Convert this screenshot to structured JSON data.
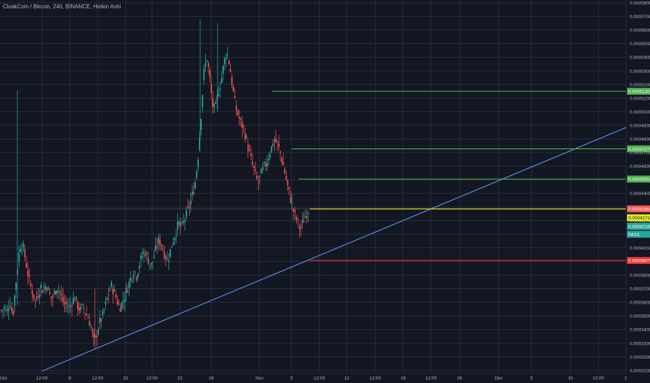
{
  "header": {
    "title": "CloakCoin / Bitcoin, 240, BINANCE, Heikin Ashi"
  },
  "colors": {
    "background": "#131722",
    "grid": "#2a2e39",
    "up": "#26a69a",
    "down": "#ef5350",
    "axis_text": "#b2b5be",
    "trendline": "#5b8fe8",
    "support": "#e8e82a",
    "resistance": "#4caf50",
    "stop": "#e53935"
  },
  "chart_data": {
    "type": "candlestick",
    "y_ticks": [
      "0.0005800",
      "0.0005700",
      "0.0005600",
      "0.0005500",
      "0.0005400",
      "0.0005300",
      "0.0005200",
      "0.0005100",
      "0.0005000",
      "0.0004900",
      "0.0004800",
      "0.0004700",
      "0.0004600",
      "0.0004500",
      "0.0004400",
      "0.0004300",
      "0.0004200",
      "0.0004100",
      "0.0004000",
      "0.0003900",
      "0.0003800",
      "0.0003700",
      "0.0003600",
      "0.0003500",
      "0.0003400",
      "0.0003300",
      "0.0003200",
      "0.0003100"
    ],
    "y_range": [
      0.00031,
      0.00058
    ],
    "x_ticks": [
      "Oct",
      "12:00",
      "8",
      "12:00",
      "15",
      "12:00",
      "22",
      "26",
      "Nov",
      "5",
      "12:00",
      "12",
      "12:00",
      "19",
      "12:00",
      "26",
      "Dec",
      "5",
      "10",
      "12:00",
      "1"
    ],
    "horizontal_levels": [
      {
        "price": 0.000515,
        "label": "0.0005145",
        "color": "#4caf50"
      },
      {
        "price": 0.0004727,
        "label": "0.0004727",
        "color": "#4caf50"
      },
      {
        "price": 0.0004505,
        "label": "0.0004505",
        "color": "#4caf50"
      },
      {
        "price": 0.0004286,
        "label": "0.0004286",
        "color": "#e8e82a"
      },
      {
        "price": 0.0003907,
        "label": "0.0003907",
        "color": "#e53935"
      }
    ],
    "price_tags": [
      {
        "price": 0.0004286,
        "label": "0.0004286",
        "color": "#ef5350"
      },
      {
        "price": 0.0004271,
        "label": "0.0004271",
        "color": "#e8e82a"
      },
      {
        "price": 0.0004218,
        "label": "0.0004218",
        "color": "#26a69a"
      },
      {
        "price": 0.00041,
        "label": "04:01",
        "color": "#26a69a"
      }
    ],
    "trendline": {
      "from": {
        "x": "Oct 3",
        "price": 0.000309
      },
      "to": {
        "x": "Dec 12",
        "price": 0.000488
      }
    },
    "price_path": [
      [
        0.000354,
        0
      ],
      [
        0.000356,
        1
      ],
      [
        0.000352,
        2
      ],
      [
        0.000362,
        1
      ],
      [
        0.00035,
        2
      ],
      [
        0.000371,
        1
      ],
      [
        0.000392,
        1
      ],
      [
        0.000405,
        1
      ],
      [
        0.000398,
        2
      ],
      [
        0.000386,
        2
      ],
      [
        0.000374,
        2
      ],
      [
        0.000368,
        2
      ],
      [
        0.000362,
        2
      ],
      [
        0.000366,
        1
      ],
      [
        0.000372,
        1
      ],
      [
        0.000368,
        2
      ],
      [
        0.000374,
        1
      ],
      [
        0.000366,
        2
      ],
      [
        0.000362,
        2
      ],
      [
        0.000368,
        1
      ],
      [
        0.000372,
        1
      ],
      [
        0.000366,
        2
      ],
      [
        0.00036,
        2
      ],
      [
        0.000358,
        2
      ],
      [
        0.000356,
        1
      ],
      [
        0.00036,
        1
      ],
      [
        0.000364,
        1
      ],
      [
        0.000358,
        2
      ],
      [
        0.000354,
        2
      ],
      [
        0.000356,
        1
      ],
      [
        0.000352,
        2
      ],
      [
        0.000348,
        2
      ],
      [
        0.00034,
        2
      ],
      [
        0.00033,
        2
      ],
      [
        0.000338,
        1
      ],
      [
        0.000346,
        1
      ],
      [
        0.00035,
        1
      ],
      [
        0.000358,
        1
      ],
      [
        0.000366,
        1
      ],
      [
        0.000372,
        1
      ],
      [
        0.000368,
        2
      ],
      [
        0.000362,
        2
      ],
      [
        0.000356,
        2
      ],
      [
        0.00036,
        1
      ],
      [
        0.000366,
        1
      ],
      [
        0.000372,
        1
      ],
      [
        0.000378,
        1
      ],
      [
        0.000384,
        1
      ],
      [
        0.00038,
        2
      ],
      [
        0.000388,
        1
      ],
      [
        0.000394,
        1
      ],
      [
        0.000398,
        1
      ],
      [
        0.000392,
        2
      ],
      [
        0.000386,
        2
      ],
      [
        0.000392,
        1
      ],
      [
        0.0004,
        1
      ],
      [
        0.000406,
        1
      ],
      [
        0.000402,
        2
      ],
      [
        0.000396,
        2
      ],
      [
        0.00039,
        2
      ],
      [
        0.000398,
        1
      ],
      [
        0.000406,
        1
      ],
      [
        0.000412,
        1
      ],
      [
        0.000418,
        1
      ],
      [
        0.000414,
        2
      ],
      [
        0.00042,
        1
      ],
      [
        0.000426,
        1
      ],
      [
        0.000432,
        1
      ],
      [
        0.00044,
        1
      ],
      [
        0.00045,
        1
      ],
      [
        0.00047,
        1
      ],
      [
        0.0005,
        1
      ],
      [
        0.00053,
        1
      ],
      [
        0.00054,
        1
      ],
      [
        0.000525,
        2
      ],
      [
        0.000505,
        2
      ],
      [
        0.0005,
        1
      ],
      [
        0.000515,
        1
      ],
      [
        0.000522,
        1
      ],
      [
        0.000535,
        1
      ],
      [
        0.000545,
        1
      ],
      [
        0.000535,
        2
      ],
      [
        0.00052,
        2
      ],
      [
        0.000505,
        2
      ],
      [
        0.000498,
        2
      ],
      [
        0.000492,
        2
      ],
      [
        0.000488,
        2
      ],
      [
        0.00048,
        2
      ],
      [
        0.00047,
        2
      ],
      [
        0.000462,
        2
      ],
      [
        0.000455,
        2
      ],
      [
        0.000448,
        2
      ],
      [
        0.000452,
        1
      ],
      [
        0.000458,
        1
      ],
      [
        0.000462,
        1
      ],
      [
        0.000468,
        1
      ],
      [
        0.000474,
        1
      ],
      [
        0.00048,
        1
      ],
      [
        0.000476,
        2
      ],
      [
        0.00047,
        2
      ],
      [
        0.000462,
        2
      ],
      [
        0.000452,
        2
      ],
      [
        0.000442,
        2
      ],
      [
        0.000434,
        2
      ],
      [
        0.000425,
        2
      ],
      [
        0.00042,
        2
      ],
      [
        0.000414,
        2
      ],
      [
        0.000418,
        1
      ],
      [
        0.000424,
        1
      ],
      [
        0.000428,
        1
      ]
    ]
  }
}
